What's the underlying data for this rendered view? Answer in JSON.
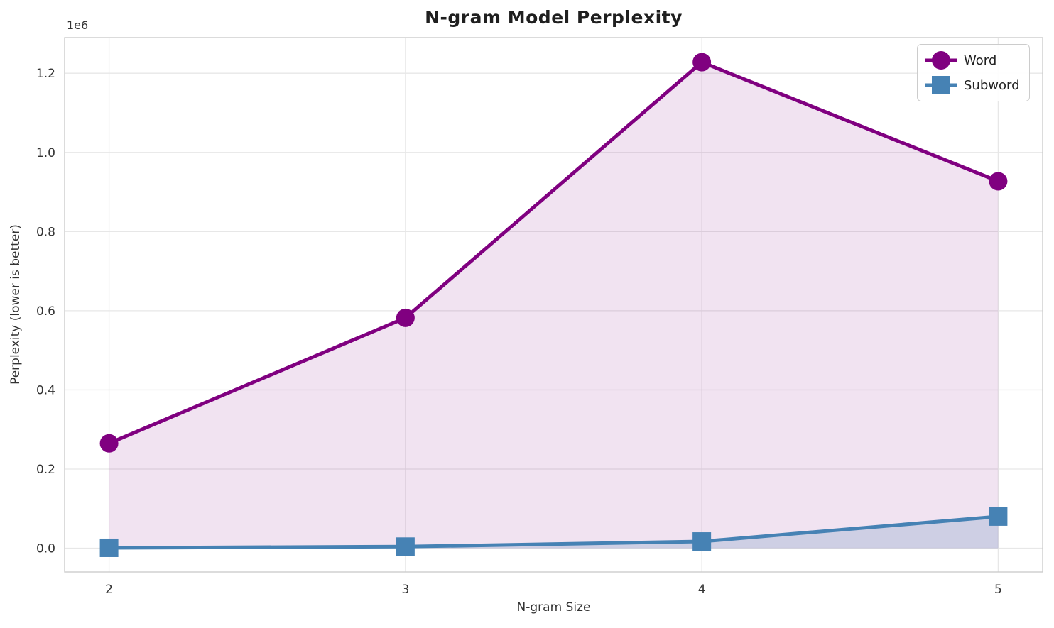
{
  "chart_data": {
    "type": "line",
    "title": "N-gram Model Perplexity",
    "xlabel": "N-gram Size",
    "ylabel": "Perplexity (lower is better)",
    "y_offset_label": "1e6",
    "x": [
      2,
      3,
      4,
      5
    ],
    "series": [
      {
        "name": "Word",
        "color": "#800080",
        "marker": "circle",
        "values": [
          265000,
          582000,
          1228000,
          927000
        ],
        "fill_opacity": 0.11
      },
      {
        "name": "Subword",
        "color": "#4682B4",
        "marker": "square",
        "values": [
          1000,
          4000,
          17000,
          80000
        ],
        "fill_opacity": 0.2
      }
    ],
    "x_ticks": [
      2,
      3,
      4,
      5
    ],
    "x_tick_labels": [
      "2",
      "3",
      "4",
      "5"
    ],
    "y_ticks": [
      0,
      200000,
      400000,
      600000,
      800000,
      1000000,
      1200000
    ],
    "y_tick_labels": [
      "0.0",
      "0.2",
      "0.4",
      "0.6",
      "0.8",
      "1.0",
      "1.2"
    ],
    "xlim": [
      1.85,
      5.15
    ],
    "ylim": [
      -60000,
      1290000
    ],
    "grid": true,
    "legend_position": "upper right",
    "fill_baseline": 0
  },
  "style": {
    "grid_color": "#e7e7e7",
    "spine_color": "#cccccc",
    "tick_label_color": "#333333",
    "background": "#ffffff"
  }
}
